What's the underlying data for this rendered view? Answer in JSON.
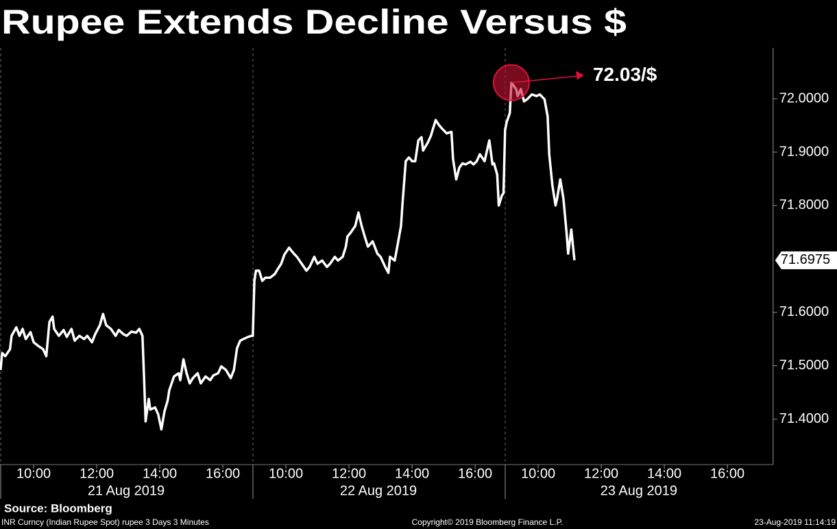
{
  "chart_data": {
    "type": "line",
    "title": "Rupee Extends Decline Versus $",
    "source": "Source: Bloomberg",
    "footer": {
      "left": "INR Curncy (Indian Rupee Spot) rupee 3 Days 3 Minutes",
      "center": "Copyright© 2019 Bloomberg Finance L.P.",
      "right": "23-Aug-2019 11:14:19"
    },
    "color": "#ffffff",
    "x": [
      "2019-08-21 08:57",
      "2019-08-21 09:00",
      "2019-08-21 09:06",
      "2019-08-21 09:15",
      "2019-08-21 09:18",
      "2019-08-21 09:27",
      "2019-08-21 09:33",
      "2019-08-21 09:39",
      "2019-08-21 09:45",
      "2019-08-21 09:54",
      "2019-08-21 10:00",
      "2019-08-21 10:09",
      "2019-08-21 10:18",
      "2019-08-21 10:24",
      "2019-08-21 10:30",
      "2019-08-21 10:36",
      "2019-08-21 10:39",
      "2019-08-21 10:48",
      "2019-08-21 10:57",
      "2019-08-21 11:03",
      "2019-08-21 11:12",
      "2019-08-21 11:18",
      "2019-08-21 11:27",
      "2019-08-21 11:36",
      "2019-08-21 11:42",
      "2019-08-21 11:51",
      "2019-08-21 11:57",
      "2019-08-21 12:06",
      "2019-08-21 12:12",
      "2019-08-21 12:18",
      "2019-08-21 12:27",
      "2019-08-21 12:36",
      "2019-08-21 12:42",
      "2019-08-21 12:51",
      "2019-08-21 12:57",
      "2019-08-21 13:06",
      "2019-08-21 13:15",
      "2019-08-21 13:21",
      "2019-08-21 13:27",
      "2019-08-21 13:30",
      "2019-08-21 13:33",
      "2019-08-21 13:39",
      "2019-08-21 13:42",
      "2019-08-21 13:51",
      "2019-08-21 13:57",
      "2019-08-21 14:03",
      "2019-08-21 14:09",
      "2019-08-21 14:15",
      "2019-08-21 14:18",
      "2019-08-21 14:27",
      "2019-08-21 14:36",
      "2019-08-21 14:39",
      "2019-08-21 14:45",
      "2019-08-21 14:51",
      "2019-08-21 14:57",
      "2019-08-21 15:03",
      "2019-08-21 15:12",
      "2019-08-21 15:18",
      "2019-08-21 15:27",
      "2019-08-21 15:36",
      "2019-08-21 15:42",
      "2019-08-21 15:51",
      "2019-08-21 15:57",
      "2019-08-21 16:06",
      "2019-08-21 16:15",
      "2019-08-21 16:21",
      "2019-08-21 16:27",
      "2019-08-21 16:33",
      "2019-08-21 16:39",
      "2019-08-21 16:48",
      "2019-08-21 16:54",
      "2019-08-22 08:57",
      "2019-08-22 09:00",
      "2019-08-22 09:03",
      "2019-08-22 09:09",
      "2019-08-22 09:15",
      "2019-08-22 09:21",
      "2019-08-22 09:30",
      "2019-08-22 09:39",
      "2019-08-22 09:45",
      "2019-08-22 09:51",
      "2019-08-22 09:57",
      "2019-08-22 10:06",
      "2019-08-22 10:15",
      "2019-08-22 10:21",
      "2019-08-22 10:30",
      "2019-08-22 10:39",
      "2019-08-22 10:45",
      "2019-08-22 10:54",
      "2019-08-22 11:00",
      "2019-08-22 11:09",
      "2019-08-22 11:18",
      "2019-08-22 11:24",
      "2019-08-22 11:33",
      "2019-08-22 11:39",
      "2019-08-22 11:48",
      "2019-08-22 11:54",
      "2019-08-22 11:57",
      "2019-08-22 12:03",
      "2019-08-22 12:12",
      "2019-08-22 12:18",
      "2019-08-22 12:24",
      "2019-08-22 12:30",
      "2019-08-22 12:36",
      "2019-08-22 12:45",
      "2019-08-22 12:54",
      "2019-08-22 13:00",
      "2019-08-22 13:09",
      "2019-08-22 13:15",
      "2019-08-22 13:18",
      "2019-08-22 13:27",
      "2019-08-22 13:33",
      "2019-08-22 13:39",
      "2019-08-22 13:42",
      "2019-08-22 13:48",
      "2019-08-22 13:54",
      "2019-08-22 14:00",
      "2019-08-22 14:06",
      "2019-08-22 14:12",
      "2019-08-22 14:18",
      "2019-08-22 14:21",
      "2019-08-22 14:30",
      "2019-08-22 14:36",
      "2019-08-22 14:39",
      "2019-08-22 14:45",
      "2019-08-22 14:51",
      "2019-08-22 14:57",
      "2019-08-22 15:06",
      "2019-08-22 15:15",
      "2019-08-22 15:18",
      "2019-08-22 15:24",
      "2019-08-22 15:30",
      "2019-08-22 15:36",
      "2019-08-22 15:42",
      "2019-08-22 15:51",
      "2019-08-22 15:57",
      "2019-08-22 16:03",
      "2019-08-22 16:09",
      "2019-08-22 16:18",
      "2019-08-22 16:21",
      "2019-08-22 16:27",
      "2019-08-22 16:33",
      "2019-08-22 16:36",
      "2019-08-22 16:42",
      "2019-08-22 16:45",
      "2019-08-22 16:51",
      "2019-08-22 16:54",
      "2019-08-23 08:57",
      "2019-08-23 09:00",
      "2019-08-23 09:06",
      "2019-08-23 09:09",
      "2019-08-23 09:18",
      "2019-08-23 09:21",
      "2019-08-23 09:27",
      "2019-08-23 09:33",
      "2019-08-23 09:39",
      "2019-08-23 09:48",
      "2019-08-23 09:57",
      "2019-08-23 10:03",
      "2019-08-23 10:12",
      "2019-08-23 10:18",
      "2019-08-23 10:21",
      "2019-08-23 10:27",
      "2019-08-23 10:33",
      "2019-08-23 10:36",
      "2019-08-23 10:42",
      "2019-08-23 10:48",
      "2019-08-23 10:54",
      "2019-08-23 10:57",
      "2019-08-23 11:03",
      "2019-08-23 11:09"
    ],
    "values": [
      71.492,
      71.524,
      71.518,
      71.531,
      71.556,
      71.572,
      71.556,
      71.569,
      71.55,
      71.563,
      71.544,
      71.537,
      71.531,
      71.518,
      71.582,
      71.592,
      71.569,
      71.556,
      71.567,
      71.554,
      71.569,
      71.547,
      71.556,
      71.55,
      71.556,
      71.544,
      71.559,
      71.576,
      71.597,
      71.576,
      71.569,
      71.556,
      71.567,
      71.559,
      71.556,
      71.564,
      71.562,
      71.569,
      71.556,
      71.48,
      71.396,
      71.438,
      71.418,
      71.422,
      71.409,
      71.381,
      71.415,
      71.435,
      71.454,
      71.48,
      71.486,
      71.473,
      71.512,
      71.486,
      71.467,
      71.477,
      71.486,
      71.467,
      71.48,
      71.473,
      71.482,
      71.486,
      71.499,
      71.492,
      71.477,
      71.492,
      71.533,
      71.547,
      71.55,
      71.554,
      71.556,
      71.556,
      71.659,
      71.678,
      71.678,
      71.659,
      71.665,
      71.665,
      71.672,
      71.682,
      71.691,
      71.708,
      71.721,
      71.71,
      71.704,
      71.691,
      71.678,
      71.685,
      71.704,
      71.691,
      71.697,
      71.685,
      71.691,
      71.704,
      71.697,
      71.704,
      71.723,
      71.742,
      71.749,
      71.762,
      71.787,
      71.762,
      71.742,
      71.723,
      71.733,
      71.71,
      71.704,
      71.685,
      71.674,
      71.704,
      71.697,
      71.729,
      71.762,
      71.806,
      71.883,
      71.89,
      71.883,
      71.883,
      71.922,
      71.928,
      71.903,
      71.918,
      71.931,
      71.941,
      71.96,
      71.951,
      71.944,
      71.935,
      71.938,
      71.887,
      71.849,
      71.871,
      71.879,
      71.877,
      71.882,
      71.877,
      71.883,
      71.896,
      71.883,
      71.896,
      71.922,
      71.877,
      71.879,
      71.858,
      71.8,
      71.819,
      71.823,
      71.941,
      71.956,
      71.973,
      72.03,
      72.018,
      72.005,
      72.018,
      71.995,
      71.999,
      72.008,
      72.005,
      72.008,
      71.999,
      71.967,
      71.896,
      71.838,
      71.8,
      71.813,
      71.849,
      71.813,
      71.749,
      71.71,
      71.755,
      71.6975
    ],
    "xlim": [
      "2019-08-21 08:56",
      "2019-08-23 17:27"
    ],
    "xticks": [
      {
        "value": "2019-08-21 10:00",
        "label": "10:00"
      },
      {
        "value": "2019-08-21 12:00",
        "label": "12:00"
      },
      {
        "value": "2019-08-21 14:00",
        "label": "14:00"
      },
      {
        "value": "2019-08-21 16:00",
        "label": "16:00"
      },
      {
        "value": "2019-08-22 10:00",
        "label": "10:00"
      },
      {
        "value": "2019-08-22 12:00",
        "label": "12:00"
      },
      {
        "value": "2019-08-22 14:00",
        "label": "14:00"
      },
      {
        "value": "2019-08-22 16:00",
        "label": "16:00"
      },
      {
        "value": "2019-08-23 10:00",
        "label": "10:00"
      },
      {
        "value": "2019-08-23 12:00",
        "label": "12:00"
      },
      {
        "value": "2019-08-23 14:00",
        "label": "14:00"
      },
      {
        "value": "2019-08-23 16:00",
        "label": "16:00"
      }
    ],
    "day_labels": [
      "21 Aug 2019",
      "22 Aug 2019",
      "23 Aug 2019"
    ],
    "ylim": [
      71.315,
      72.095
    ],
    "yticks": [
      {
        "value": 71.4,
        "label": "71.4000"
      },
      {
        "value": 71.5,
        "label": "71.5000"
      },
      {
        "value": 71.6,
        "label": "71.6000"
      },
      {
        "value": 71.8,
        "label": "71.8000"
      },
      {
        "value": 71.9,
        "label": "71.9000"
      },
      {
        "value": 72,
        "label": "72.0000"
      }
    ],
    "last_value": 71.6975,
    "annotation": {
      "text": "72.03/$",
      "value": 72.03,
      "x": "2019-08-23 09:09"
    }
  }
}
